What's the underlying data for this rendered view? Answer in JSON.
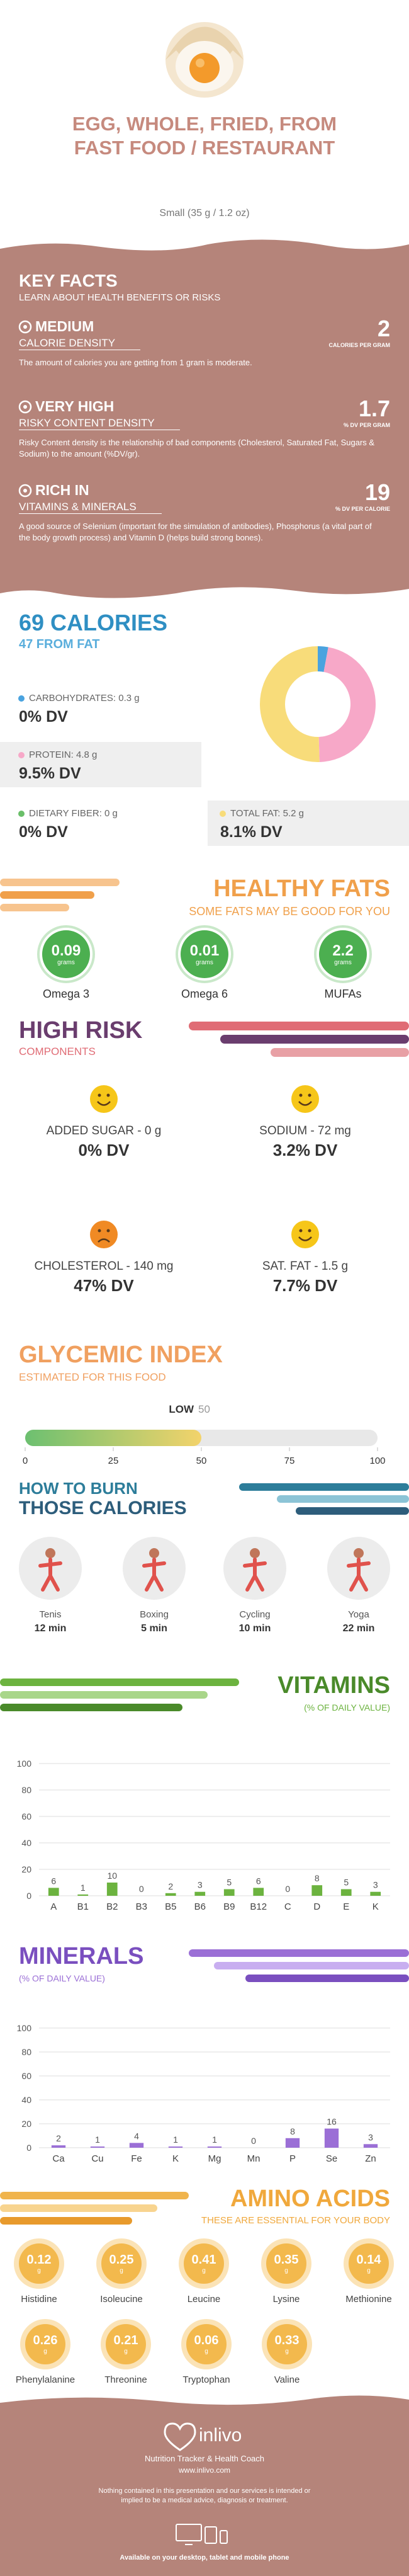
{
  "header": {
    "title": "EGG, WHOLE, FRIED, FROM FAST FOOD / RESTAURANT",
    "serving": "Small (35 g / 1.2 oz)"
  },
  "key_facts": {
    "title": "KEY FACTS",
    "subtitle": "LEARN ABOUT HEALTH BENEFITS OR RISKS",
    "items": [
      {
        "level": "MEDIUM",
        "label": "CALORIE DENSITY",
        "value": "2",
        "unit": "CALORIES PER GRAM",
        "description": "The amount of calories you are getting from 1 gram is moderate."
      },
      {
        "level": "VERY HIGH",
        "label": "RISKY CONTENT DENSITY",
        "value": "1.7",
        "unit": "% DV PER GRAM",
        "description": "Risky Content density is the relationship of bad components (Cholesterol, Saturated Fat, Sugars & Sodium) to the amount (%DV/gr)."
      },
      {
        "level": "RICH IN",
        "label": "VITAMINS & MINERALS",
        "value": "19",
        "unit": "% DV PER CALORIE",
        "description": "A good source of Selenium (important for the simulation of antibodies), Phosphorus (a vital part of the body growth process) and Vitamin D (helps build strong bones)."
      }
    ]
  },
  "calories": {
    "title": "69 CALORIES",
    "subtitle": "47 FROM FAT",
    "nutrients": [
      {
        "label": "CARBOHYDRATES: 0.3 g",
        "dv": "0% DV",
        "value": 0.3,
        "color": "#4aa3df"
      },
      {
        "label": "PROTEIN: 4.8 g",
        "dv": "9.5% DV",
        "value": 4.8,
        "color": "#f7a8c8"
      },
      {
        "label": "DIETARY FIBER: 0 g",
        "dv": "0% DV",
        "value": 0,
        "color": "#6abf69"
      },
      {
        "label": "TOTAL FAT: 5.2 g",
        "dv": "8.1% DV",
        "value": 5.2,
        "color": "#f8dc7a"
      }
    ]
  },
  "healthy_fats": {
    "title": "HEALTHY FATS",
    "subtitle": "SOME FATS MAY BE GOOD FOR YOU",
    "items": [
      {
        "value": "0.09",
        "unit": "grams",
        "name": "Omega 3"
      },
      {
        "value": "0.01",
        "unit": "grams",
        "name": "Omega 6"
      },
      {
        "value": "2.2",
        "unit": "grams",
        "name": "MUFAs"
      }
    ]
  },
  "high_risk": {
    "title": "HIGH RISK",
    "subtitle": "COMPONENTS",
    "items": [
      {
        "label": "ADDED SUGAR - 0 g",
        "dv": "0% DV",
        "mood": "happy"
      },
      {
        "label": "SODIUM - 72 mg",
        "dv": "3.2% DV",
        "mood": "happy"
      },
      {
        "label": "CHOLESTEROL - 140 mg",
        "dv": "47% DV",
        "mood": "sad"
      },
      {
        "label": "SAT. FAT - 1.5 g",
        "dv": "7.7% DV",
        "mood": "happy"
      }
    ]
  },
  "glycemic": {
    "title": "GLYCEMIC INDEX",
    "subtitle": "ESTIMATED FOR THIS FOOD",
    "level": "LOW",
    "value": 50,
    "xlim": [
      0,
      100
    ],
    "xticks": [
      0,
      25,
      50,
      75,
      100
    ]
  },
  "burn": {
    "title_line1": "HOW TO BURN",
    "title_line2": "THOSE CALORIES",
    "activities": [
      {
        "name": "Tenis",
        "time": "12 min"
      },
      {
        "name": "Boxing",
        "time": "5 min"
      },
      {
        "name": "Cycling",
        "time": "10 min"
      },
      {
        "name": "Yoga",
        "time": "22 min"
      }
    ]
  },
  "vitamins": {
    "title": "VITAMINS",
    "subtitle": "(% OF DAILY VALUE)",
    "chart": {
      "type": "bar",
      "categories": [
        "A",
        "B1",
        "B2",
        "B3",
        "B5",
        "B6",
        "B9",
        "B12",
        "C",
        "D",
        "E",
        "K"
      ],
      "values": [
        6,
        1,
        10,
        0,
        2,
        3,
        5,
        6,
        0,
        8,
        5,
        3
      ],
      "color": "#6cb33f",
      "ylim": [
        0,
        100
      ],
      "yticks": [
        0,
        20,
        40,
        60,
        80,
        100
      ],
      "grid": true
    }
  },
  "minerals": {
    "title": "MINERALS",
    "subtitle": "(% OF DAILY VALUE)",
    "chart": {
      "type": "bar",
      "categories": [
        "Ca",
        "Cu",
        "Fe",
        "K",
        "Mg",
        "Mn",
        "P",
        "Se",
        "Zn"
      ],
      "values": [
        2,
        1,
        4,
        1,
        1,
        0,
        8,
        16,
        3
      ],
      "color": "#9b6fd6",
      "ylim": [
        0,
        100
      ],
      "yticks": [
        0,
        20,
        40,
        60,
        80,
        100
      ],
      "grid": true
    }
  },
  "amino_acids": {
    "title": "AMINO ACIDS",
    "subtitle": "THESE ARE ESSENTIAL FOR YOUR BODY",
    "items": [
      {
        "value": "0.12",
        "unit": "g",
        "name": "Histidine"
      },
      {
        "value": "0.25",
        "unit": "g",
        "name": "Isoleucine"
      },
      {
        "value": "0.41",
        "unit": "g",
        "name": "Leucine"
      },
      {
        "value": "0.35",
        "unit": "g",
        "name": "Lysine"
      },
      {
        "value": "0.14",
        "unit": "g",
        "name": "Methionine"
      },
      {
        "value": "0.26",
        "unit": "g",
        "name": "Phenylalanine"
      },
      {
        "value": "0.21",
        "unit": "g",
        "name": "Threonine"
      },
      {
        "value": "0.06",
        "unit": "g",
        "name": "Tryptophan"
      },
      {
        "value": "0.33",
        "unit": "g",
        "name": "Valine"
      }
    ]
  },
  "footer": {
    "brand": "inlivo",
    "tagline": "Nutrition Tracker & Health Coach",
    "url": "www.inlivo.com",
    "disclaimer": "Nothing contained in this presentation and our services is intended or implied to be a medical advice, diagnosis or treatment.",
    "available": "Available on your desktop, tablet and mobile phone"
  }
}
